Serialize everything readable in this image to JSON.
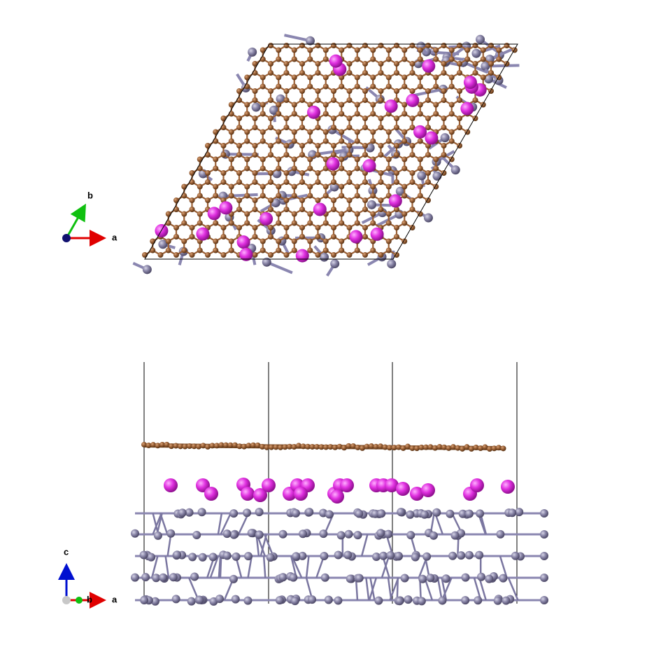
{
  "top_view": {
    "axes": {
      "b": "b",
      "a": "a"
    }
  },
  "side_view": {
    "axes": {
      "c": "c",
      "b": "b",
      "a": "a"
    }
  }
}
